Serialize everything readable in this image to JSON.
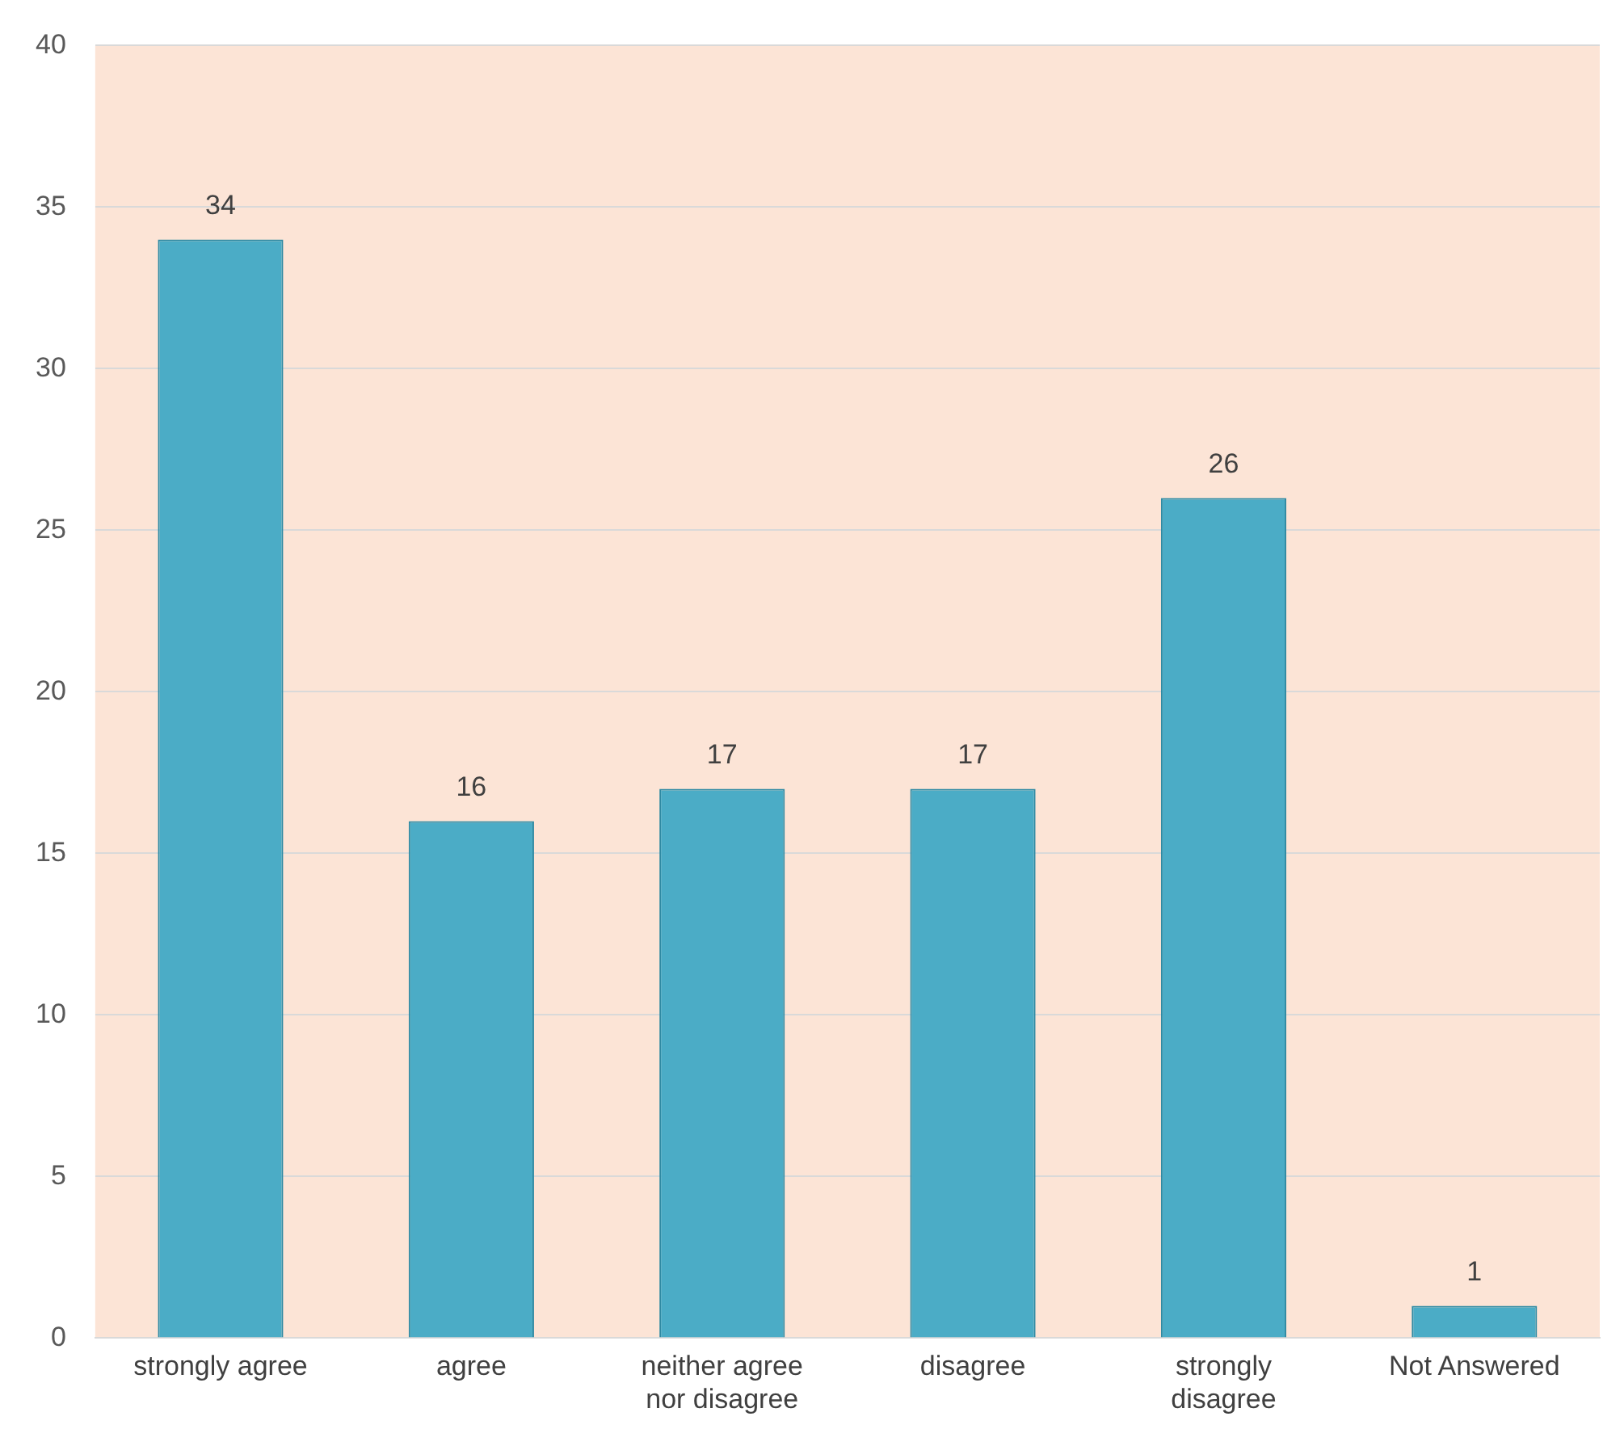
{
  "chart_data": {
    "type": "bar",
    "categories": [
      "strongly agree",
      "agree",
      "neither agree nor disagree",
      "disagree",
      "strongly disagree",
      "Not Answered"
    ],
    "values": [
      34,
      16,
      17,
      17,
      26,
      1
    ],
    "color": "#4bacc6",
    "ylim": [
      0,
      40
    ],
    "yticks": [
      0,
      5,
      10,
      15,
      20,
      25,
      30,
      35,
      40
    ],
    "grid": "y",
    "data_labels": true,
    "legend": false
  }
}
